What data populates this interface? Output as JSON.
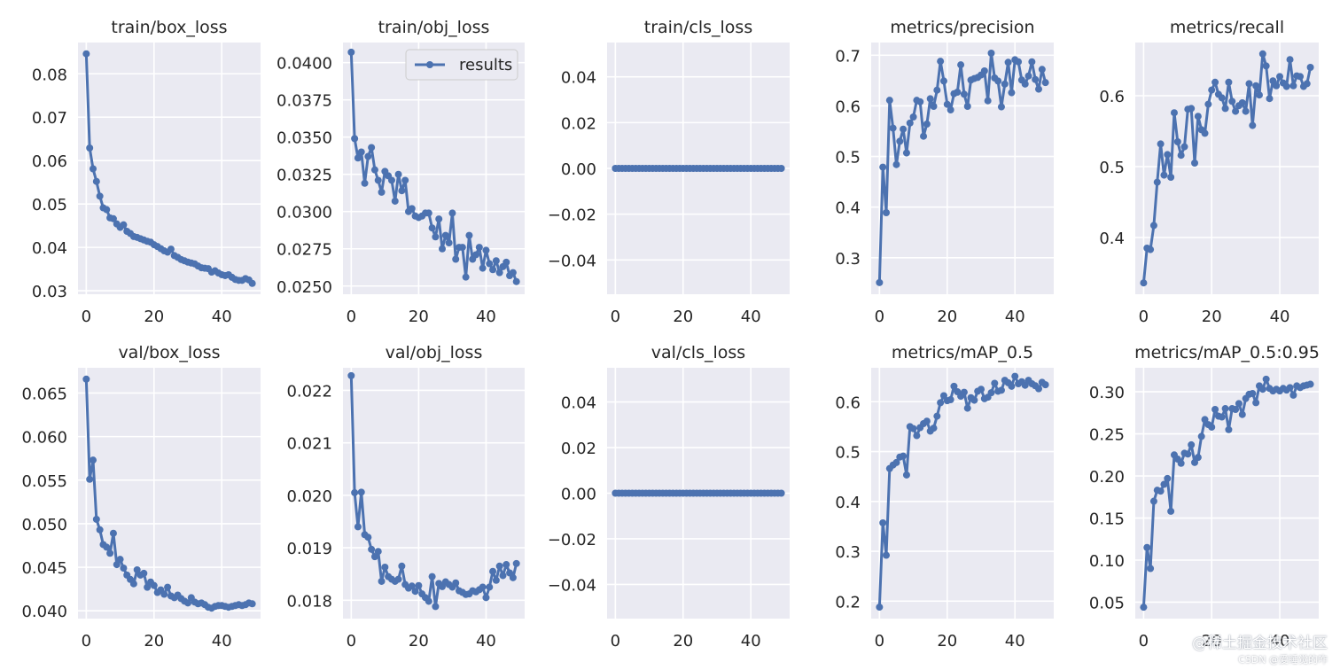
{
  "style": {
    "panel_bg": "#eaeaf2",
    "grid_color": "#ffffff",
    "line_color": "#4c72b0",
    "text_color": "#262626"
  },
  "watermark": {
    "line1": "@稀土掘金技术社区",
    "line2": "CSDN @爱睡觉的咋"
  },
  "chart_data": [
    {
      "type": "line",
      "title": "train/box_loss",
      "xlim": [
        -2.45,
        51.45
      ],
      "xticks": [
        0,
        20,
        40
      ],
      "ylim": [
        0.0292,
        0.0872
      ],
      "yticks": [
        0.03,
        0.04,
        0.05,
        0.06,
        0.07,
        0.08
      ],
      "ytick_labels": [
        "0.03",
        "0.04",
        "0.05",
        "0.06",
        "0.07",
        "0.08"
      ],
      "legend": null,
      "y": [
        0.0846,
        0.0629,
        0.0581,
        0.0552,
        0.0518,
        0.0491,
        0.0487,
        0.0468,
        0.0466,
        0.0454,
        0.0446,
        0.0452,
        0.0437,
        0.0432,
        0.0425,
        0.0423,
        0.042,
        0.0417,
        0.0414,
        0.0412,
        0.0406,
        0.0402,
        0.0397,
        0.0392,
        0.0389,
        0.0396,
        0.0381,
        0.0377,
        0.0372,
        0.0369,
        0.0366,
        0.0364,
        0.0362,
        0.0357,
        0.0353,
        0.0352,
        0.0351,
        0.0343,
        0.0346,
        0.0341,
        0.0337,
        0.0335,
        0.0337,
        0.0331,
        0.0326,
        0.0324,
        0.0324,
        0.0328,
        0.0325,
        0.0317
      ]
    },
    {
      "type": "line",
      "title": "train/obj_loss",
      "xlim": [
        -2.45,
        51.45
      ],
      "xticks": [
        0,
        20,
        40
      ],
      "ylim": [
        0.02445,
        0.04135
      ],
      "yticks": [
        0.025,
        0.0275,
        0.03,
        0.0325,
        0.035,
        0.0375,
        0.04
      ],
      "ytick_labels": [
        "0.0250",
        "0.0275",
        "0.0300",
        "0.0325",
        "0.0350",
        "0.0375",
        "0.0400"
      ],
      "legend": {
        "label": "results",
        "loc": "upper right"
      },
      "y": [
        0.0407,
        0.0349,
        0.0336,
        0.034,
        0.0319,
        0.0337,
        0.0343,
        0.0328,
        0.0321,
        0.0313,
        0.0327,
        0.0324,
        0.0321,
        0.0307,
        0.0325,
        0.0314,
        0.0321,
        0.03,
        0.0302,
        0.0297,
        0.0296,
        0.0297,
        0.0299,
        0.0299,
        0.0289,
        0.0283,
        0.0295,
        0.0275,
        0.0284,
        0.0279,
        0.0299,
        0.0268,
        0.0276,
        0.0276,
        0.0256,
        0.0284,
        0.0268,
        0.0271,
        0.0276,
        0.0262,
        0.0274,
        0.0265,
        0.0261,
        0.0267,
        0.0259,
        0.0263,
        0.0266,
        0.0257,
        0.0259,
        0.0253
      ]
    },
    {
      "type": "line",
      "title": "train/cls_loss",
      "xlim": [
        -2.45,
        51.45
      ],
      "xticks": [
        0,
        20,
        40
      ],
      "ylim": [
        -0.055,
        0.055
      ],
      "yticks": [
        -0.04,
        -0.02,
        0.0,
        0.02,
        0.04
      ],
      "ytick_labels": [
        "−0.04",
        "−0.02",
        "0.00",
        "0.02",
        "0.04"
      ],
      "legend": null,
      "y": [
        0,
        0,
        0,
        0,
        0,
        0,
        0,
        0,
        0,
        0,
        0,
        0,
        0,
        0,
        0,
        0,
        0,
        0,
        0,
        0,
        0,
        0,
        0,
        0,
        0,
        0,
        0,
        0,
        0,
        0,
        0,
        0,
        0,
        0,
        0,
        0,
        0,
        0,
        0,
        0,
        0,
        0,
        0,
        0,
        0,
        0,
        0,
        0,
        0,
        0
      ]
    },
    {
      "type": "line",
      "title": "metrics/precision",
      "xlim": [
        -2.45,
        51.45
      ],
      "xticks": [
        0,
        20,
        40
      ],
      "ylim": [
        0.228,
        0.725
      ],
      "yticks": [
        0.3,
        0.4,
        0.5,
        0.6,
        0.7
      ],
      "ytick_labels": [
        "0.3",
        "0.4",
        "0.5",
        "0.6",
        "0.7"
      ],
      "legend": null,
      "y": [
        0.251,
        0.479,
        0.389,
        0.611,
        0.556,
        0.484,
        0.53,
        0.554,
        0.507,
        0.566,
        0.578,
        0.611,
        0.608,
        0.54,
        0.564,
        0.614,
        0.599,
        0.631,
        0.688,
        0.649,
        0.603,
        0.592,
        0.624,
        0.627,
        0.681,
        0.623,
        0.599,
        0.651,
        0.654,
        0.656,
        0.661,
        0.669,
        0.61,
        0.704,
        0.655,
        0.649,
        0.598,
        0.643,
        0.686,
        0.626,
        0.691,
        0.687,
        0.651,
        0.643,
        0.659,
        0.687,
        0.652,
        0.633,
        0.672,
        0.646
      ]
    },
    {
      "type": "line",
      "title": "metrics/recall",
      "xlim": [
        -2.45,
        51.45
      ],
      "xticks": [
        0,
        20,
        40
      ],
      "ylim": [
        0.32,
        0.675
      ],
      "yticks": [
        0.4,
        0.5,
        0.6
      ],
      "ytick_labels": [
        "0.4",
        "0.5",
        "0.6"
      ],
      "legend": null,
      "y": [
        0.336,
        0.385,
        0.383,
        0.417,
        0.478,
        0.532,
        0.488,
        0.517,
        0.485,
        0.576,
        0.535,
        0.516,
        0.528,
        0.581,
        0.582,
        0.505,
        0.571,
        0.552,
        0.547,
        0.588,
        0.608,
        0.619,
        0.602,
        0.597,
        0.582,
        0.619,
        0.592,
        0.578,
        0.586,
        0.59,
        0.578,
        0.617,
        0.558,
        0.614,
        0.601,
        0.659,
        0.642,
        0.596,
        0.621,
        0.614,
        0.627,
        0.618,
        0.613,
        0.651,
        0.614,
        0.628,
        0.627,
        0.613,
        0.617,
        0.64
      ]
    },
    {
      "type": "line",
      "title": "val/box_loss",
      "xlim": [
        -2.45,
        51.45
      ],
      "xticks": [
        0,
        20,
        40
      ],
      "ylim": [
        0.0391,
        0.0679
      ],
      "yticks": [
        0.04,
        0.045,
        0.05,
        0.055,
        0.06,
        0.065
      ],
      "ytick_labels": [
        "0.040",
        "0.045",
        "0.050",
        "0.055",
        "0.060",
        "0.065"
      ],
      "legend": null,
      "y": [
        0.0666,
        0.0551,
        0.0573,
        0.0505,
        0.0493,
        0.0476,
        0.0473,
        0.0466,
        0.0489,
        0.0453,
        0.0459,
        0.0449,
        0.0441,
        0.0436,
        0.0431,
        0.0447,
        0.0441,
        0.0443,
        0.0427,
        0.0433,
        0.0429,
        0.0421,
        0.0424,
        0.0419,
        0.0427,
        0.0417,
        0.0415,
        0.0418,
        0.0414,
        0.0411,
        0.0409,
        0.0415,
        0.041,
        0.0408,
        0.0409,
        0.0407,
        0.0404,
        0.0403,
        0.0405,
        0.0406,
        0.0406,
        0.0405,
        0.0404,
        0.0405,
        0.0406,
        0.0407,
        0.0406,
        0.0407,
        0.0409,
        0.0408
      ]
    },
    {
      "type": "line",
      "title": "val/obj_loss",
      "xlim": [
        -2.45,
        51.45
      ],
      "xticks": [
        0,
        20,
        40
      ],
      "ylim": [
        0.01765,
        0.02243
      ],
      "yticks": [
        0.018,
        0.019,
        0.02,
        0.021,
        0.022
      ],
      "ytick_labels": [
        "0.018",
        "0.019",
        "0.020",
        "0.021",
        "0.022"
      ],
      "legend": null,
      "y": [
        0.02228,
        0.02005,
        0.0194,
        0.02006,
        0.01925,
        0.0192,
        0.01897,
        0.01883,
        0.01893,
        0.01836,
        0.01863,
        0.01845,
        0.0184,
        0.01836,
        0.0184,
        0.01865,
        0.0183,
        0.01823,
        0.01827,
        0.01817,
        0.01828,
        0.01812,
        0.01805,
        0.01798,
        0.01845,
        0.01788,
        0.01832,
        0.01826,
        0.01835,
        0.0183,
        0.01825,
        0.01833,
        0.01818,
        0.01815,
        0.01811,
        0.01812,
        0.01818,
        0.01816,
        0.0182,
        0.01825,
        0.01805,
        0.01825,
        0.01855,
        0.01838,
        0.01865,
        0.01847,
        0.01868,
        0.01852,
        0.01843,
        0.0187
      ]
    },
    {
      "type": "line",
      "title": "val/cls_loss",
      "xlim": [
        -2.45,
        51.45
      ],
      "xticks": [
        0,
        20,
        40
      ],
      "ylim": [
        -0.055,
        0.055
      ],
      "yticks": [
        -0.04,
        -0.02,
        0.0,
        0.02,
        0.04
      ],
      "ytick_labels": [
        "−0.04",
        "−0.02",
        "0.00",
        "0.02",
        "0.04"
      ],
      "legend": null,
      "y": [
        0,
        0,
        0,
        0,
        0,
        0,
        0,
        0,
        0,
        0,
        0,
        0,
        0,
        0,
        0,
        0,
        0,
        0,
        0,
        0,
        0,
        0,
        0,
        0,
        0,
        0,
        0,
        0,
        0,
        0,
        0,
        0,
        0,
        0,
        0,
        0,
        0,
        0,
        0,
        0,
        0,
        0,
        0,
        0,
        0,
        0,
        0,
        0,
        0,
        0
      ]
    },
    {
      "type": "line",
      "title": "metrics/mAP_0.5",
      "xlim": [
        -2.45,
        51.45
      ],
      "xticks": [
        0,
        20,
        40
      ],
      "ylim": [
        0.165,
        0.668
      ],
      "yticks": [
        0.2,
        0.3,
        0.4,
        0.5,
        0.6
      ],
      "ytick_labels": [
        "0.2",
        "0.3",
        "0.4",
        "0.5",
        "0.6"
      ],
      "legend": null,
      "y": [
        0.188,
        0.357,
        0.292,
        0.466,
        0.473,
        0.478,
        0.489,
        0.491,
        0.453,
        0.55,
        0.546,
        0.532,
        0.548,
        0.556,
        0.561,
        0.541,
        0.547,
        0.571,
        0.598,
        0.612,
        0.602,
        0.604,
        0.631,
        0.62,
        0.611,
        0.619,
        0.587,
        0.608,
        0.603,
        0.621,
        0.625,
        0.606,
        0.609,
        0.618,
        0.637,
        0.621,
        0.623,
        0.643,
        0.638,
        0.631,
        0.651,
        0.636,
        0.64,
        0.633,
        0.643,
        0.636,
        0.632,
        0.626,
        0.639,
        0.634
      ]
    },
    {
      "type": "line",
      "title": "metrics/mAP_0.5:0.95",
      "xlim": [
        -2.45,
        51.45
      ],
      "xticks": [
        0,
        20,
        40
      ],
      "ylim": [
        0.0305,
        0.3285
      ],
      "yticks": [
        0.05,
        0.1,
        0.15,
        0.2,
        0.25,
        0.3
      ],
      "ytick_labels": [
        "0.05",
        "0.10",
        "0.15",
        "0.20",
        "0.25",
        "0.30"
      ],
      "legend": null,
      "y": [
        0.044,
        0.115,
        0.09,
        0.17,
        0.183,
        0.182,
        0.19,
        0.197,
        0.158,
        0.225,
        0.22,
        0.215,
        0.227,
        0.226,
        0.237,
        0.216,
        0.222,
        0.247,
        0.267,
        0.261,
        0.258,
        0.279,
        0.271,
        0.27,
        0.28,
        0.255,
        0.28,
        0.279,
        0.286,
        0.273,
        0.292,
        0.297,
        0.298,
        0.287,
        0.307,
        0.303,
        0.315,
        0.304,
        0.301,
        0.303,
        0.301,
        0.304,
        0.302,
        0.305,
        0.296,
        0.307,
        0.305,
        0.307,
        0.308,
        0.309
      ]
    }
  ]
}
